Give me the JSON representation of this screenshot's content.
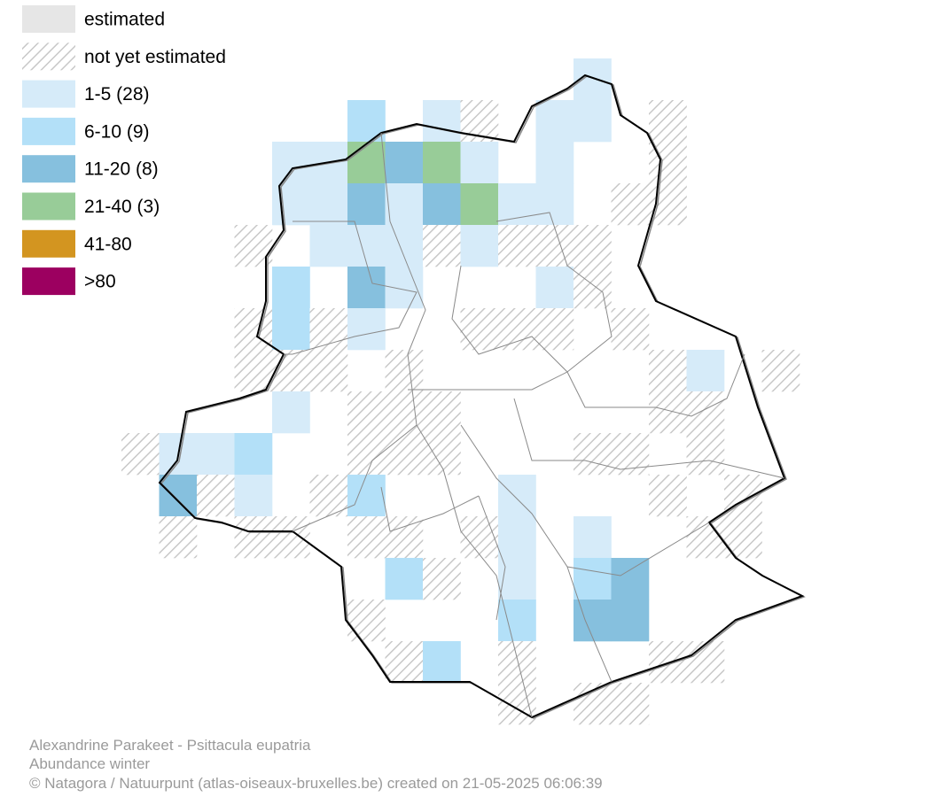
{
  "legend": {
    "items": [
      {
        "label": "estimated"
      },
      {
        "label": "not yet estimated"
      },
      {
        "label": "1-5 (28)"
      },
      {
        "label": "6-10 (9)"
      },
      {
        "label": "11-20 (8)"
      },
      {
        "label": "21-40 (3)"
      },
      {
        "label": "41-80"
      },
      {
        "label": ">80"
      }
    ]
  },
  "footer": {
    "species": "Alexandrine Parakeet - Psittacula eupatria",
    "subtitle": "Abundance winter",
    "credit": "© Natagora / Natuurpunt (atlas-oiseaux-bruxelles.be) created on 21-05-2025 06:06:39"
  }
}
